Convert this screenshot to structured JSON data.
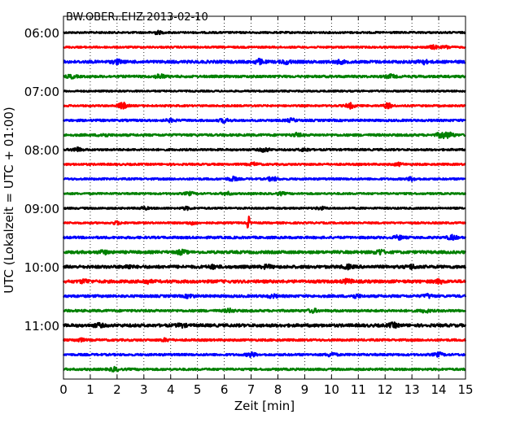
{
  "chart_data": {
    "type": "line",
    "title": "BW.OBER..EHZ 2013-02-10",
    "xlabel": "Zeit  [min]",
    "ylabel": "UTC (Lokalzeit = UTC + 01:00)",
    "xlim": [
      0,
      15
    ],
    "x_ticks": [
      "0",
      "1",
      "2",
      "3",
      "4",
      "5",
      "6",
      "7",
      "8",
      "9",
      "10",
      "11",
      "12",
      "13",
      "14",
      "15"
    ],
    "y_tick_labels": [
      "06:00",
      "07:00",
      "08:00",
      "09:00",
      "10:00",
      "11:00"
    ],
    "grid": "vertical dotted at each minute",
    "trace_interval_minutes": 15,
    "first_trace_start": "06:00",
    "color_cycle": [
      "#000000",
      "#ff0000",
      "#0000ff",
      "#008000"
    ],
    "series": [
      {
        "start": "06:00",
        "color": "#000000",
        "amplitude": 1.0,
        "bursts": [
          [
            3.5,
            1.6
          ]
        ]
      },
      {
        "start": "06:15",
        "color": "#ff0000",
        "amplitude": 1.0,
        "bursts": [
          [
            13.8,
            1.8
          ],
          [
            14.3,
            1.4
          ]
        ]
      },
      {
        "start": "06:30",
        "color": "#0000ff",
        "amplitude": 1.6,
        "bursts": [
          [
            2.0,
            2.0
          ],
          [
            7.3,
            2.6
          ],
          [
            8.3,
            1.8
          ],
          [
            10.3,
            1.6
          ],
          [
            13.4,
            2.2
          ]
        ]
      },
      {
        "start": "06:45",
        "color": "#008000",
        "amplitude": 1.3,
        "bursts": [
          [
            0.3,
            1.6
          ],
          [
            3.6,
            2.4
          ],
          [
            12.2,
            1.8
          ]
        ]
      },
      {
        "start": "07:00",
        "color": "#000000",
        "amplitude": 0.9,
        "bursts": []
      },
      {
        "start": "07:15",
        "color": "#ff0000",
        "amplitude": 1.0,
        "bursts": [
          [
            2.2,
            3.5
          ],
          [
            10.7,
            2.8
          ],
          [
            12.1,
            2.8
          ]
        ]
      },
      {
        "start": "07:30",
        "color": "#0000ff",
        "amplitude": 1.2,
        "bursts": [
          [
            4.0,
            1.4
          ],
          [
            6.0,
            2.0
          ],
          [
            8.5,
            1.6
          ]
        ]
      },
      {
        "start": "07:45",
        "color": "#008000",
        "amplitude": 1.3,
        "bursts": [
          [
            1.5,
            1.6
          ],
          [
            8.7,
            1.8
          ],
          [
            14.1,
            3.0
          ],
          [
            14.4,
            2.6
          ]
        ]
      },
      {
        "start": "08:00",
        "color": "#000000",
        "amplitude": 1.1,
        "bursts": [
          [
            0.5,
            2.2
          ],
          [
            7.5,
            2.2
          ],
          [
            9.0,
            1.6
          ]
        ]
      },
      {
        "start": "08:15",
        "color": "#ff0000",
        "amplitude": 1.1,
        "bursts": [
          [
            7.1,
            1.6
          ],
          [
            12.5,
            1.4
          ]
        ]
      },
      {
        "start": "08:30",
        "color": "#0000ff",
        "amplitude": 1.1,
        "bursts": [
          [
            6.3,
            2.2
          ],
          [
            7.8,
            2.2
          ],
          [
            13.0,
            1.8
          ]
        ]
      },
      {
        "start": "08:45",
        "color": "#008000",
        "amplitude": 1.0,
        "bursts": [
          [
            4.7,
            1.6
          ],
          [
            6.1,
            1.6
          ],
          [
            8.1,
            1.4
          ]
        ]
      },
      {
        "start": "09:00",
        "color": "#000000",
        "amplitude": 1.0,
        "bursts": [
          [
            3.0,
            1.4
          ],
          [
            4.6,
            1.4
          ],
          [
            9.6,
            1.4
          ]
        ]
      },
      {
        "start": "09:15",
        "color": "#ff0000",
        "amplitude": 1.0,
        "bursts": [
          [
            6.9,
            8.0
          ],
          [
            2.0,
            1.6
          ],
          [
            4.8,
            1.6
          ]
        ]
      },
      {
        "start": "09:30",
        "color": "#0000ff",
        "amplitude": 1.3,
        "bursts": [
          [
            12.5,
            2.0
          ],
          [
            14.5,
            2.4
          ]
        ]
      },
      {
        "start": "09:45",
        "color": "#008000",
        "amplitude": 1.6,
        "bursts": [
          [
            1.5,
            1.8
          ],
          [
            4.4,
            2.2
          ],
          [
            11.8,
            2.6
          ]
        ]
      },
      {
        "start": "10:00",
        "color": "#000000",
        "amplitude": 1.7,
        "bursts": [
          [
            2.4,
            1.6
          ],
          [
            5.6,
            1.6
          ],
          [
            7.6,
            1.6
          ],
          [
            10.6,
            1.8
          ],
          [
            13.0,
            1.8
          ]
        ]
      },
      {
        "start": "10:15",
        "color": "#ff0000",
        "amplitude": 1.7,
        "bursts": [
          [
            0.8,
            1.8
          ],
          [
            3.1,
            1.8
          ],
          [
            10.6,
            2.0
          ],
          [
            14.0,
            1.8
          ]
        ]
      },
      {
        "start": "10:30",
        "color": "#0000ff",
        "amplitude": 1.4,
        "bursts": [
          [
            4.7,
            1.8
          ],
          [
            7.8,
            1.6
          ],
          [
            10.9,
            1.8
          ],
          [
            13.6,
            1.8
          ]
        ]
      },
      {
        "start": "10:45",
        "color": "#008000",
        "amplitude": 1.3,
        "bursts": [
          [
            6.2,
            1.8
          ],
          [
            9.3,
            1.8
          ],
          [
            13.5,
            1.6
          ]
        ]
      },
      {
        "start": "11:00",
        "color": "#000000",
        "amplitude": 1.7,
        "bursts": [
          [
            1.3,
            1.8
          ],
          [
            4.4,
            1.6
          ],
          [
            12.3,
            2.2
          ]
        ]
      },
      {
        "start": "11:15",
        "color": "#ff0000",
        "amplitude": 1.2,
        "bursts": [
          [
            0.6,
            1.6
          ],
          [
            3.8,
            1.4
          ]
        ]
      },
      {
        "start": "11:30",
        "color": "#0000ff",
        "amplitude": 1.2,
        "bursts": [
          [
            7.0,
            2.2
          ],
          [
            10.0,
            2.2
          ],
          [
            14.0,
            2.0
          ]
        ]
      },
      {
        "start": "11:45",
        "color": "#008000",
        "amplitude": 1.2,
        "bursts": [
          [
            1.9,
            2.0
          ]
        ]
      }
    ]
  }
}
